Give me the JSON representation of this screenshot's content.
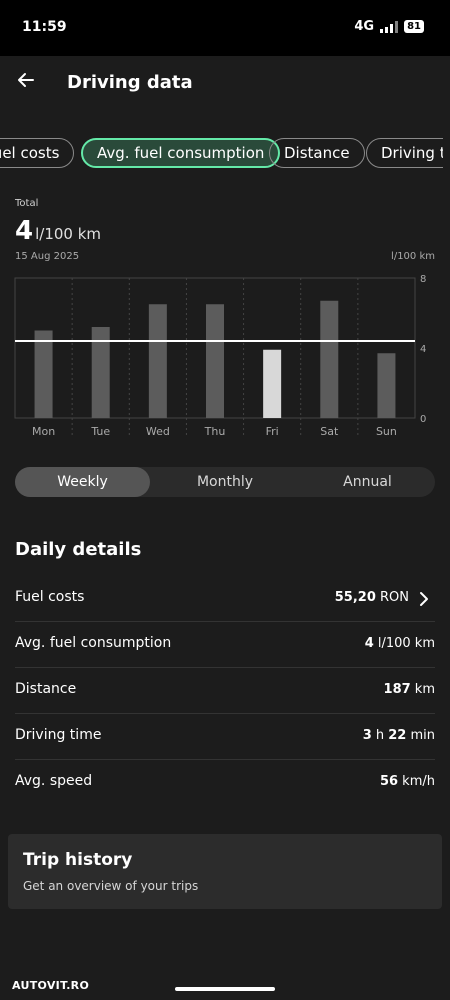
{
  "status_bar": {
    "time": "11:59",
    "network": "4G",
    "battery": "81"
  },
  "header": {
    "title": "Driving data"
  },
  "chips": [
    {
      "label": "Fuel costs",
      "active": false
    },
    {
      "label": "Avg. fuel consumption",
      "active": true
    },
    {
      "label": "Distance",
      "active": false
    },
    {
      "label": "Driving time",
      "active": false
    }
  ],
  "summary": {
    "label": "Total",
    "value": "4",
    "unit": "l/100 km",
    "date": "15 Aug 2025",
    "y_unit": "l/100 km"
  },
  "chart_data": {
    "type": "bar",
    "categories": [
      "Mon",
      "Tue",
      "Wed",
      "Thu",
      "Fri",
      "Sat",
      "Sun"
    ],
    "values": [
      5.0,
      5.2,
      6.5,
      6.5,
      3.9,
      6.7,
      3.7
    ],
    "highlight_category": "Fri",
    "average_line": 4.4,
    "ylim": [
      0,
      8
    ],
    "yticks": [
      "8",
      "4",
      "0"
    ],
    "grid": true,
    "colors": {
      "bar": "#5c5c5c",
      "highlight": "#d8d8d8",
      "average": "#ffffff"
    }
  },
  "segment": {
    "options": [
      "Weekly",
      "Monthly",
      "Annual"
    ],
    "selected": "Weekly"
  },
  "daily": {
    "title": "Daily details",
    "rows": [
      {
        "label": "Fuel costs",
        "value": "55,20",
        "unit": " RON",
        "chevron": true
      },
      {
        "label": "Avg. fuel consumption",
        "value": "4",
        "unit": " l/100 km"
      },
      {
        "label": "Distance",
        "value": "187",
        "unit": " km"
      },
      {
        "label": "Driving time",
        "value": "3",
        "unit": " h ",
        "value2": "22",
        "unit2": " min"
      },
      {
        "label": "Avg. speed",
        "value": "56",
        "unit": " km/h"
      }
    ]
  },
  "trip": {
    "title": "Trip history",
    "subtitle": "Get an overview of your trips"
  },
  "watermark": "AUTOVIT.RO",
  "colors": {
    "accent": "#64e9a8",
    "background": "#1c1c1c",
    "card": "#2c2c2c"
  }
}
